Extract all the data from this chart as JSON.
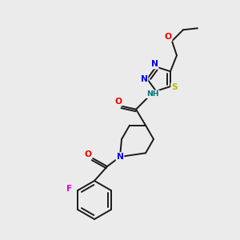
{
  "bg_color": "#ebebeb",
  "bond_color": "#1a1a1a",
  "atom_colors": {
    "N": "#0000ee",
    "O": "#ee0000",
    "S": "#bbbb00",
    "F": "#dd00dd",
    "C": "#1a1a1a",
    "H": "#007777"
  },
  "font_size": 7.2,
  "line_width": 1.4
}
